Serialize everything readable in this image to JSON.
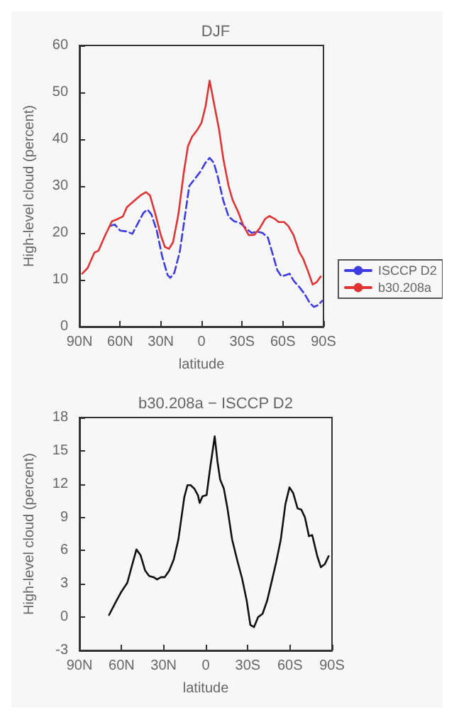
{
  "chart_data": [
    {
      "type": "line",
      "title": "DJF",
      "xlabel": "latitude",
      "ylabel": "High-level cloud (percent)",
      "xlim": [
        90,
        -90
      ],
      "xticks": [
        {
          "value": 90,
          "label": "90N"
        },
        {
          "value": 60,
          "label": "60N"
        },
        {
          "value": 30,
          "label": "30N"
        },
        0,
        {
          "value": -30,
          "label": "30S"
        },
        {
          "value": -60,
          "label": "60S"
        },
        {
          "value": -90,
          "label": "90S"
        }
      ],
      "ylim": [
        0,
        60
      ],
      "yticks": [
        0,
        10,
        20,
        30,
        40,
        50,
        60
      ],
      "legend": "right",
      "marker": "none",
      "series": [
        {
          "name": "ISCCP D2",
          "color": "#3c3ce0",
          "line_style": "dashed",
          "x": [
            67,
            64,
            60,
            55,
            51,
            47,
            43,
            40,
            37,
            33,
            29,
            25,
            23,
            20,
            16,
            12,
            9,
            5,
            1,
            -3,
            -6,
            -9,
            -12,
            -16,
            -20,
            -24,
            -28,
            -31,
            -34,
            -37,
            -41,
            -45,
            -49,
            -52,
            -56,
            -59,
            -62,
            -65,
            -68,
            -72,
            -76,
            -80,
            -83,
            -86,
            -89
          ],
          "values": [
            21.5,
            21.8,
            20.5,
            20.3,
            19.8,
            22,
            24.2,
            25,
            24,
            20.5,
            15,
            11,
            10.4,
            11.5,
            16,
            24,
            30,
            31.5,
            33,
            35,
            36,
            35,
            32,
            27,
            23.5,
            22.5,
            22.2,
            21.5,
            20.7,
            20,
            20.3,
            20,
            19,
            16,
            12,
            10.7,
            11,
            11.3,
            9.8,
            8.5,
            7,
            5,
            4.2,
            4.6,
            5.5
          ]
        },
        {
          "name": "b30.208a",
          "color": "#e03434",
          "line_style": "solid",
          "x": [
            88,
            84,
            79,
            76,
            71,
            66,
            63,
            58,
            55,
            49,
            45,
            41,
            38,
            34,
            30,
            27,
            24,
            21,
            17,
            13,
            10,
            7,
            3,
            0,
            -3,
            -6,
            -9,
            -13,
            -16,
            -20,
            -23,
            -27,
            -31,
            -35,
            -39,
            -43,
            -47,
            -50,
            -54,
            -57,
            -61,
            -64,
            -68,
            -72,
            -75,
            -79,
            -82,
            -85,
            -88
          ],
          "values": [
            11.3,
            12.5,
            15.8,
            16.2,
            19.5,
            22.5,
            22.8,
            23.5,
            25.5,
            27,
            28,
            28.7,
            28,
            24,
            19.5,
            17,
            16.6,
            18,
            24,
            33,
            38.5,
            40.5,
            42,
            43.5,
            47,
            52.5,
            48,
            42,
            36,
            30,
            27,
            24.5,
            21.5,
            19.5,
            19.6,
            21,
            23,
            23.6,
            23,
            22.3,
            22.3,
            21.5,
            19.5,
            16,
            14.5,
            11.5,
            9,
            9.5,
            10.7
          ]
        }
      ]
    },
    {
      "type": "line",
      "title": "b30.208a − ISCCP D2",
      "xlabel": "latitude",
      "ylabel": "High-level cloud (percent)",
      "xlim": [
        90,
        -90
      ],
      "xticks": [
        {
          "value": 90,
          "label": "90N"
        },
        {
          "value": 60,
          "label": "60N"
        },
        {
          "value": 30,
          "label": "30N"
        },
        0,
        {
          "value": -30,
          "label": "30S"
        },
        {
          "value": -60,
          "label": "60S"
        },
        {
          "value": -90,
          "label": "90S"
        }
      ],
      "ylim": [
        -3,
        18
      ],
      "yticks": [
        -3,
        0,
        3,
        6,
        9,
        12,
        15,
        18
      ],
      "marker": "none",
      "series": [
        {
          "color": "#111111",
          "line_style": "solid",
          "x": [
            68.9,
            64.4,
            60.1,
            55.9,
            52.7,
            49.4,
            46.5,
            43.2,
            40.3,
            37.1,
            34.8,
            31.9,
            29.3,
            26,
            22.8,
            19.5,
            17.3,
            15.3,
            13,
            10.8,
            8.2,
            5.6,
            4.3,
            2.3,
            -0.6,
            -3.2,
            -6.4,
            -8.4,
            -10.3,
            -12.9,
            -15.5,
            -18.8,
            -22.7,
            -25.9,
            -29.2,
            -31.8,
            -34.4,
            -37.3,
            -40.5,
            -43.8,
            -47,
            -50.3,
            -53.5,
            -56.8,
            -59.7,
            -62.3,
            -65.5,
            -68.1,
            -70.7,
            -73.6,
            -75.9,
            -79.5,
            -82.1,
            -85,
            -87.6
          ],
          "values": [
            0.2,
            1.3,
            2.3,
            3.1,
            4.6,
            6.1,
            5.6,
            4.2,
            3.7,
            3.6,
            3.4,
            3.6,
            3.6,
            4.2,
            5.2,
            7,
            9,
            10.8,
            11.9,
            11.9,
            11.6,
            11,
            10.3,
            10.9,
            11,
            13.5,
            16.3,
            14,
            12.4,
            11.6,
            9.8,
            7,
            5,
            3.5,
            1.5,
            -0.7,
            -0.9,
            0,
            0.3,
            1.5,
            3.2,
            5,
            7,
            10.2,
            11.7,
            11.2,
            9.8,
            9.7,
            9,
            7.3,
            7.4,
            5.5,
            4.5,
            4.8,
            5.5
          ]
        }
      ]
    }
  ]
}
